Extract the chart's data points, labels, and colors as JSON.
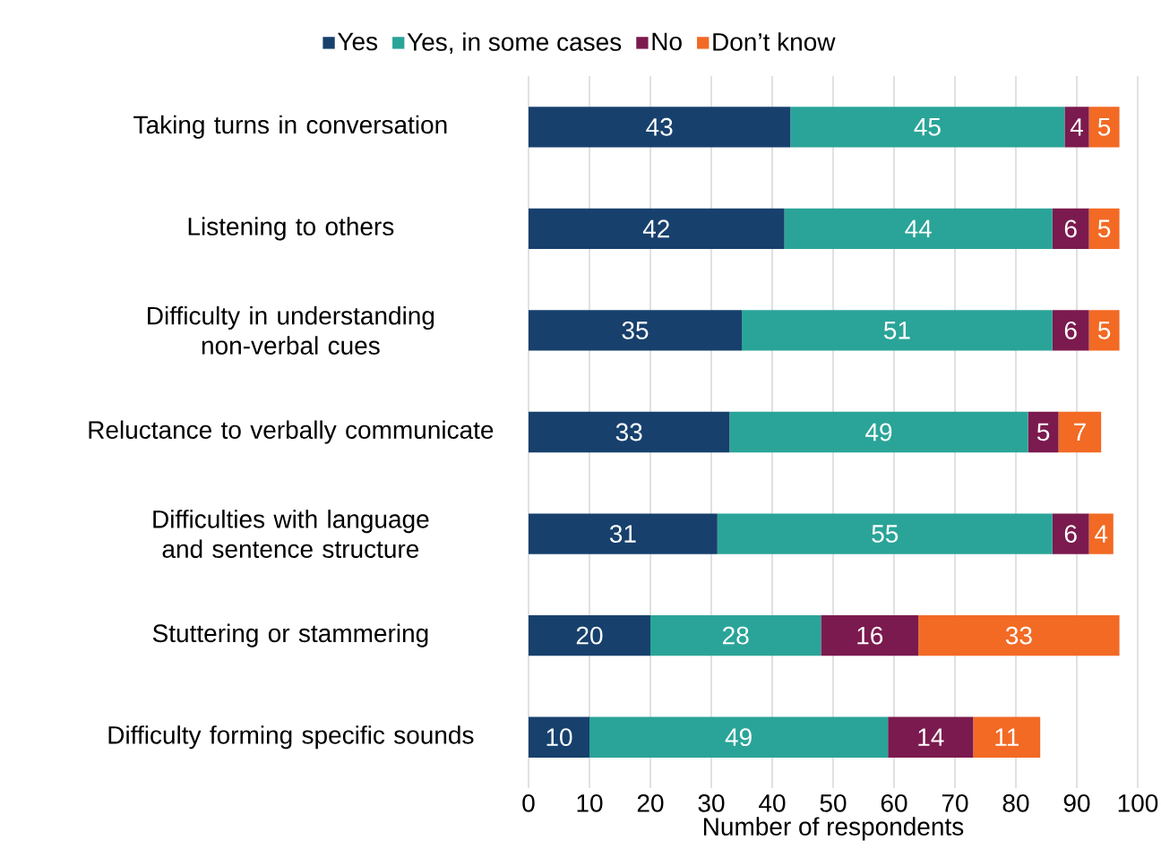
{
  "chart_data": {
    "type": "bar",
    "orientation": "horizontal",
    "stacked": true,
    "data_labels": true,
    "grid": "x",
    "legend": "top",
    "categories": [
      "Taking turns in conversation",
      "Listening to others",
      "Difficulty in understanding non-verbal cues",
      "Reluctance to verbally communicate",
      "Difficulties with language and sentence structure",
      "Stuttering or stammering",
      "Difficulty forming specific sounds"
    ],
    "series": [
      {
        "name": "Yes",
        "color": "#17406d",
        "values": [
          43,
          42,
          35,
          33,
          31,
          20,
          10
        ]
      },
      {
        "name": "Yes, in some cases",
        "color": "#2aa498",
        "values": [
          45,
          44,
          51,
          49,
          55,
          28,
          49
        ]
      },
      {
        "name": "No",
        "color": "#7b1a4e",
        "values": [
          4,
          6,
          6,
          5,
          6,
          16,
          14
        ]
      },
      {
        "name": "Don’t know",
        "color": "#f26a24",
        "values": [
          5,
          5,
          5,
          7,
          4,
          33,
          11
        ]
      }
    ],
    "xlim": [
      0,
      100
    ],
    "xticks": [
      0,
      10,
      20,
      30,
      40,
      50,
      60,
      70,
      80,
      90,
      100
    ],
    "xlabel": "Number of respondents"
  }
}
